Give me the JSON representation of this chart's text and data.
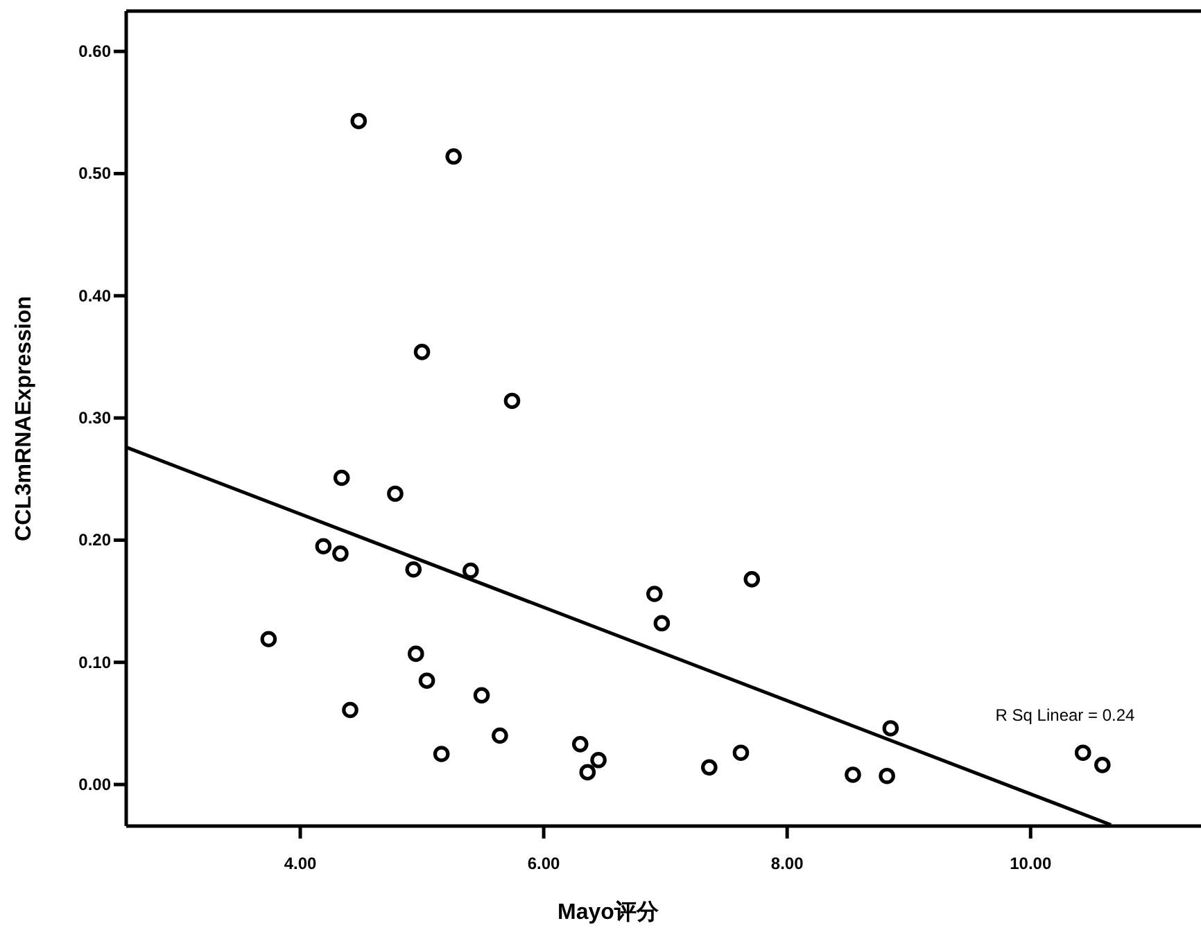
{
  "chart_data": {
    "type": "scatter",
    "xlabel": "Mayo评分",
    "ylabel": "CCL3mRNAExpression",
    "xlim": [
      2.57,
      11.4
    ],
    "ylim": [
      -0.034,
      0.633
    ],
    "xticks": [
      {
        "value": 4,
        "label": "4.00"
      },
      {
        "value": 6,
        "label": "6.00"
      },
      {
        "value": 8,
        "label": "8.00"
      },
      {
        "value": 10,
        "label": "10.00"
      }
    ],
    "yticks": [
      {
        "value": 0,
        "label": "0.00"
      },
      {
        "value": 0.1,
        "label": "0.10"
      },
      {
        "value": 0.2,
        "label": "0.20"
      },
      {
        "value": 0.3,
        "label": "0.30"
      },
      {
        "value": 0.4,
        "label": "0.40"
      },
      {
        "value": 0.5,
        "label": "0.50"
      },
      {
        "value": 0.6,
        "label": "0.60"
      }
    ],
    "grid": false,
    "annotations": [
      "R Sq Linear = 0.24"
    ],
    "series": [
      {
        "color": "#000000",
        "marker": "circle",
        "x": [
          4.48,
          5.26,
          5.0,
          5.74,
          4.34,
          4.78,
          4.19,
          4.33,
          4.93,
          5.4,
          3.74,
          4.95,
          5.04,
          4.41,
          5.49,
          5.16,
          5.64,
          6.3,
          6.36,
          6.45,
          6.91,
          6.97,
          7.71,
          7.36,
          7.62,
          8.54,
          8.82,
          8.85,
          10.43,
          10.59
        ],
        "values": [
          0.543,
          0.514,
          0.354,
          0.314,
          0.251,
          0.238,
          0.195,
          0.189,
          0.176,
          0.175,
          0.119,
          0.107,
          0.085,
          0.061,
          0.073,
          0.025,
          0.04,
          0.033,
          0.01,
          0.02,
          0.156,
          0.132,
          0.168,
          0.014,
          0.026,
          0.008,
          0.007,
          0.046,
          0.026,
          0.016
        ]
      },
      {
        "type": "line",
        "color": "#000000",
        "line_style": "solid",
        "x": [
          2.57,
          10.66
        ],
        "values": [
          0.276,
          -0.033
        ]
      }
    ]
  }
}
